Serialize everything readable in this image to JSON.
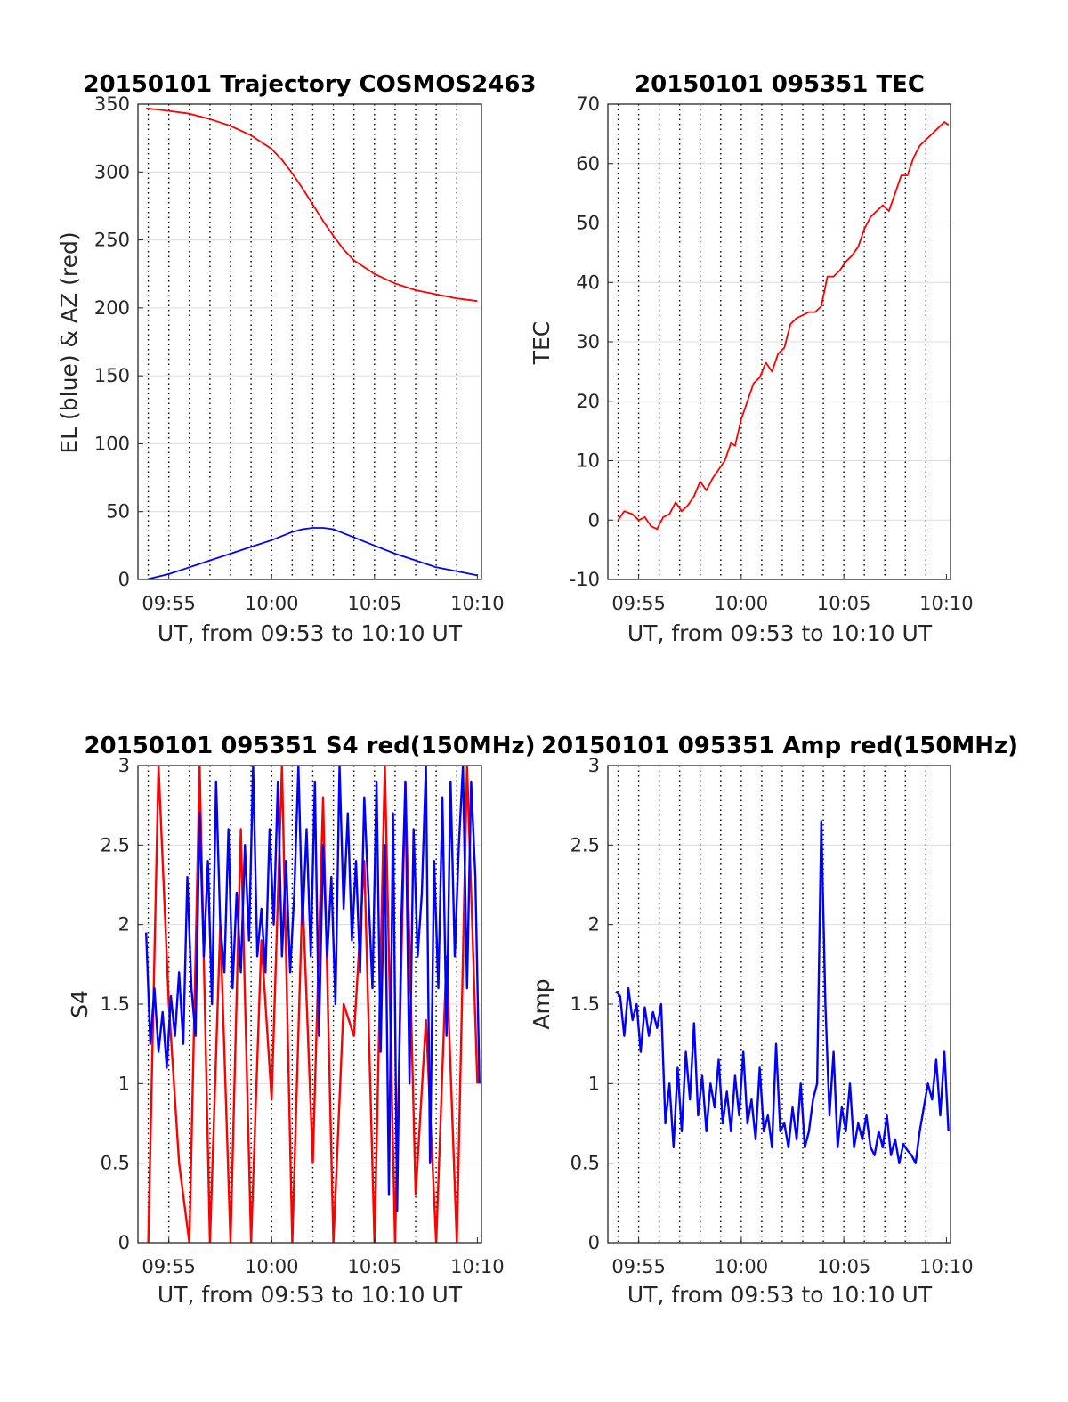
{
  "chart_data": [
    {
      "id": "trajectory",
      "type": "line",
      "title": "20150101 Trajectory COSMOS2463",
      "xlabel": "UT, from 09:53 to 10:10 UT",
      "ylabel": "EL (blue) & AZ (red)",
      "xlim": [
        593.5,
        610.2
      ],
      "ylim": [
        0,
        350
      ],
      "xtick_labels": [
        "09:55",
        "10:00",
        "10:05",
        "10:10"
      ],
      "ytick_labels": [
        "0",
        "50",
        "100",
        "150",
        "200",
        "250",
        "300",
        "350"
      ],
      "grid": true,
      "colors": {
        "el": "#0000ff",
        "az": "#ff0000"
      },
      "series": [
        {
          "color": "#ff0000",
          "kind": "az",
          "x": [
            593.9,
            595.0,
            596.0,
            597.0,
            598.0,
            599.0,
            600.0,
            600.5,
            601.0,
            601.5,
            602.0,
            602.5,
            603.0,
            603.5,
            604.0,
            605.0,
            606.0,
            607.0,
            608.0,
            609.0,
            610.0
          ],
          "y": [
            347,
            345,
            343,
            339,
            334,
            327,
            317,
            309,
            299,
            288,
            276,
            264,
            253,
            243,
            235,
            225,
            218,
            213,
            210,
            207,
            205
          ]
        },
        {
          "color": "#0000ff",
          "kind": "el",
          "x": [
            593.9,
            595.0,
            596.0,
            597.0,
            598.0,
            599.0,
            600.0,
            600.5,
            601.0,
            601.5,
            602.0,
            602.5,
            603.0,
            603.5,
            604.0,
            605.0,
            606.0,
            607.0,
            608.0,
            609.0,
            610.0
          ],
          "y": [
            0,
            4,
            9,
            14,
            19,
            24,
            29,
            32,
            35,
            37,
            38,
            38,
            37,
            34,
            31,
            25,
            19,
            14,
            9,
            6,
            3
          ]
        }
      ]
    },
    {
      "id": "tec",
      "type": "line",
      "title": "20150101 095351 TEC",
      "xlabel": "UT, from 09:53 to 10:10 UT",
      "ylabel": "TEC",
      "xlim": [
        593.5,
        610.2
      ],
      "ylim": [
        -10,
        70
      ],
      "xtick_labels": [
        "09:55",
        "10:00",
        "10:05",
        "10:10"
      ],
      "ytick_labels": [
        "-10",
        "0",
        "10",
        "20",
        "30",
        "40",
        "50",
        "60",
        "70"
      ],
      "grid": true,
      "series": [
        {
          "color": "#ff0000",
          "x": [
            594.0,
            594.3,
            594.7,
            595.0,
            595.3,
            595.6,
            595.9,
            596.2,
            596.5,
            596.8,
            597.1,
            597.4,
            597.7,
            598.0,
            598.3,
            598.6,
            598.9,
            599.2,
            599.5,
            599.7,
            600.0,
            600.3,
            600.6,
            600.9,
            601.2,
            601.5,
            601.8,
            602.1,
            602.4,
            602.7,
            603.0,
            603.3,
            603.6,
            603.9,
            604.2,
            604.5,
            604.8,
            605.1,
            605.4,
            605.7,
            606.0,
            606.3,
            606.6,
            606.9,
            607.2,
            607.5,
            607.8,
            608.1,
            608.4,
            608.7,
            609.0,
            609.3,
            609.6,
            609.9,
            610.1
          ],
          "y": [
            0,
            1.5,
            1,
            0,
            0.5,
            -1,
            -1.5,
            0.5,
            1,
            3,
            1.5,
            2.5,
            4,
            6.5,
            5,
            7,
            8.5,
            10,
            13,
            12.5,
            17,
            20,
            23,
            24,
            26.5,
            25,
            28,
            29,
            33,
            34,
            34.5,
            35,
            35,
            36,
            41,
            41,
            42,
            43.5,
            44.5,
            46,
            49,
            51,
            52,
            53,
            52,
            55,
            58,
            58,
            61,
            63,
            64,
            65,
            66,
            67,
            66.5
          ]
        }
      ]
    },
    {
      "id": "s4",
      "type": "line",
      "title": "20150101 095351 S4 red(150MHz)",
      "xlabel": "UT, from 09:53 to 10:10 UT",
      "ylabel": "S4",
      "xlim": [
        593.5,
        610.2
      ],
      "ylim": [
        0,
        3
      ],
      "xtick_labels": [
        "09:55",
        "10:00",
        "10:05",
        "10:10"
      ],
      "ytick_labels": [
        "0",
        "0.5",
        "1",
        "1.5",
        "2",
        "2.5",
        "3"
      ],
      "grid": true,
      "series": [
        {
          "color": "#ff0000",
          "x": [
            594.0,
            594.5,
            595.0,
            595.5,
            596.0,
            596.5,
            597.0,
            597.5,
            598.0,
            598.5,
            599.0,
            599.5,
            600.0,
            600.5,
            601.0,
            601.5,
            602.0,
            602.5,
            603.0,
            603.5,
            604.0,
            604.5,
            605.0,
            605.5,
            606.0,
            606.5,
            607.0,
            607.5,
            608.0,
            608.5,
            609.0,
            609.5,
            610.0
          ],
          "y": [
            0,
            3,
            1.5,
            0.5,
            0,
            3,
            0,
            2,
            0,
            2.6,
            0,
            1.9,
            0.9,
            3,
            0,
            2.2,
            0.5,
            2.8,
            0,
            1.5,
            1.3,
            2.4,
            0,
            3,
            0,
            2.9,
            0.3,
            1.4,
            0,
            1.8,
            0,
            3,
            1
          ]
        },
        {
          "color": "#0000ff",
          "x": [
            593.9,
            594.1,
            594.3,
            594.5,
            594.7,
            594.9,
            595.1,
            595.3,
            595.5,
            595.7,
            595.9,
            596.1,
            596.3,
            596.5,
            596.7,
            596.9,
            597.1,
            597.3,
            597.5,
            597.7,
            597.9,
            598.1,
            598.3,
            598.5,
            598.7,
            598.9,
            599.1,
            599.3,
            599.5,
            599.7,
            599.9,
            600.1,
            600.3,
            600.5,
            600.7,
            600.9,
            601.1,
            601.3,
            601.5,
            601.7,
            601.9,
            602.1,
            602.3,
            602.5,
            602.7,
            602.9,
            603.1,
            603.3,
            603.5,
            603.7,
            603.9,
            604.1,
            604.3,
            604.5,
            604.7,
            604.9,
            605.1,
            605.3,
            605.5,
            605.7,
            605.9,
            606.1,
            606.3,
            606.5,
            606.7,
            606.9,
            607.1,
            607.3,
            607.5,
            607.7,
            607.9,
            608.1,
            608.3,
            608.5,
            608.7,
            608.9,
            609.1,
            609.3,
            609.5,
            609.7,
            609.9,
            610.1
          ],
          "y": [
            1.95,
            1.25,
            1.6,
            1.2,
            1.45,
            1.1,
            1.55,
            1.3,
            1.7,
            1.25,
            2.3,
            1.6,
            1.3,
            2.7,
            1.8,
            2.4,
            1.5,
            2.9,
            2.0,
            1.7,
            2.6,
            1.6,
            2.2,
            1.7,
            2.5,
            1.9,
            3.0,
            1.8,
            2.1,
            1.7,
            2.6,
            2.0,
            2.9,
            1.8,
            2.4,
            1.7,
            2.2,
            3.0,
            2.0,
            2.6,
            1.8,
            2.9,
            1.3,
            2.5,
            1.8,
            2.3,
            1.5,
            3.0,
            2.1,
            2.7,
            1.9,
            2.4,
            1.7,
            2.8,
            2.2,
            1.6,
            2.9,
            1.2,
            2.5,
            0.3,
            2.7,
            0.2,
            2.0,
            2.9,
            1.0,
            2.6,
            1.8,
            2.2,
            3.0,
            0.5,
            2.4,
            1.6,
            2.8,
            1.3,
            2.9,
            1.8,
            2.5,
            3.0,
            1.6,
            2.9,
            2.3,
            1.0
          ]
        }
      ]
    },
    {
      "id": "amp",
      "type": "line",
      "title": "20150101 095351 Amp red(150MHz)",
      "xlabel": "UT, from 09:53 to 10:10 UT",
      "ylabel": "Amp",
      "xlim": [
        593.5,
        610.2
      ],
      "ylim": [
        0,
        3
      ],
      "xtick_labels": [
        "09:55",
        "10:00",
        "10:05",
        "10:10"
      ],
      "ytick_labels": [
        "0",
        "0.5",
        "1",
        "1.5",
        "2",
        "2.5",
        "3"
      ],
      "grid": true,
      "series": [
        {
          "color": "#0000ff",
          "x": [
            593.9,
            594.1,
            594.3,
            594.5,
            594.7,
            594.9,
            595.1,
            595.3,
            595.5,
            595.7,
            595.9,
            596.1,
            596.3,
            596.5,
            596.7,
            596.9,
            597.1,
            597.3,
            597.5,
            597.7,
            597.9,
            598.1,
            598.3,
            598.5,
            598.7,
            598.9,
            599.1,
            599.3,
            599.5,
            599.7,
            599.9,
            600.1,
            600.3,
            600.5,
            600.7,
            600.9,
            601.1,
            601.3,
            601.5,
            601.7,
            601.9,
            602.1,
            602.3,
            602.5,
            602.7,
            602.9,
            603.1,
            603.3,
            603.5,
            603.7,
            603.9,
            604.1,
            604.3,
            604.5,
            604.7,
            604.9,
            605.1,
            605.3,
            605.5,
            605.7,
            605.9,
            606.1,
            606.3,
            606.5,
            606.7,
            606.9,
            607.1,
            607.3,
            607.5,
            607.7,
            607.9,
            608.1,
            608.3,
            608.5,
            608.7,
            608.9,
            609.1,
            609.3,
            609.5,
            609.7,
            609.9,
            610.1
          ],
          "y": [
            1.58,
            1.55,
            1.3,
            1.6,
            1.4,
            1.5,
            1.2,
            1.48,
            1.3,
            1.45,
            1.35,
            1.5,
            0.75,
            1.0,
            0.6,
            1.1,
            0.7,
            1.2,
            0.9,
            1.38,
            0.8,
            1.05,
            0.7,
            1.0,
            0.85,
            1.15,
            0.75,
            0.95,
            0.7,
            1.05,
            0.8,
            1.2,
            0.75,
            0.9,
            0.65,
            1.1,
            0.7,
            0.8,
            0.6,
            1.25,
            0.7,
            0.75,
            0.6,
            0.85,
            0.65,
            1.0,
            0.6,
            0.7,
            0.9,
            1.0,
            2.65,
            1.5,
            0.8,
            1.2,
            0.6,
            0.85,
            0.7,
            1.0,
            0.6,
            0.75,
            0.65,
            0.8,
            0.6,
            0.55,
            0.7,
            0.6,
            0.8,
            0.55,
            0.65,
            0.5,
            0.62,
            0.58,
            0.55,
            0.5,
            0.7,
            0.85,
            1.0,
            0.9,
            1.15,
            0.8,
            1.2,
            0.7
          ]
        }
      ]
    }
  ]
}
